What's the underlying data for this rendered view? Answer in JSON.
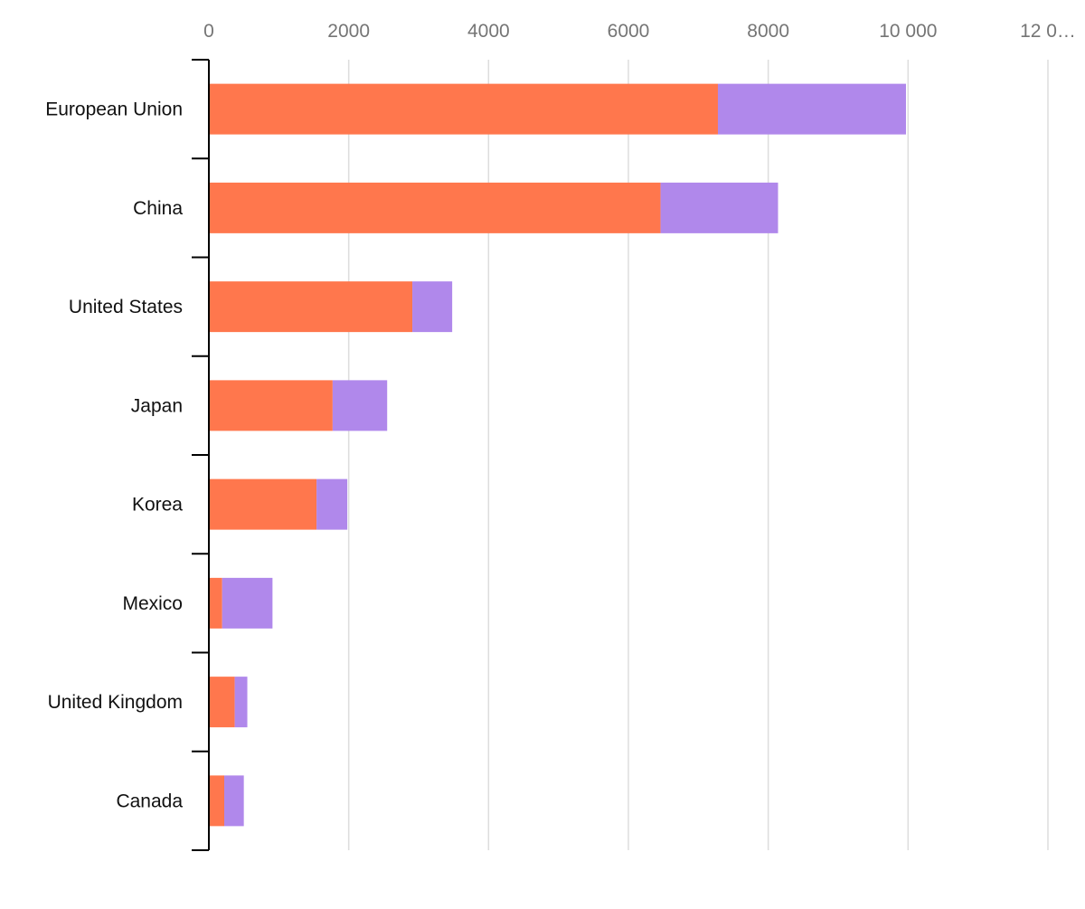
{
  "chart_data": {
    "type": "bar",
    "orientation": "horizontal",
    "stacked": true,
    "categories": [
      "European Union",
      "China",
      "United States",
      "Japan",
      "Korea",
      "Mexico",
      "United Kingdom",
      "Canada"
    ],
    "series": [
      {
        "color": "#ff774d",
        "values": [
          7280,
          6460,
          2910,
          1770,
          1540,
          190,
          370,
          220
        ]
      },
      {
        "color": "#b088eb",
        "values": [
          2690,
          1680,
          570,
          780,
          440,
          720,
          180,
          280
        ]
      }
    ],
    "xlim": [
      0,
      12000
    ],
    "x_ticks": [
      0,
      2000,
      4000,
      6000,
      8000,
      10000,
      12000
    ],
    "x_tick_labels": [
      "0",
      "2000",
      "4000",
      "6000",
      "8000",
      "10 000",
      "12 0…"
    ],
    "x_axis_position": "top",
    "grid": "vertical",
    "legend": "none",
    "title": "",
    "xlabel": "",
    "ylabel": ""
  }
}
